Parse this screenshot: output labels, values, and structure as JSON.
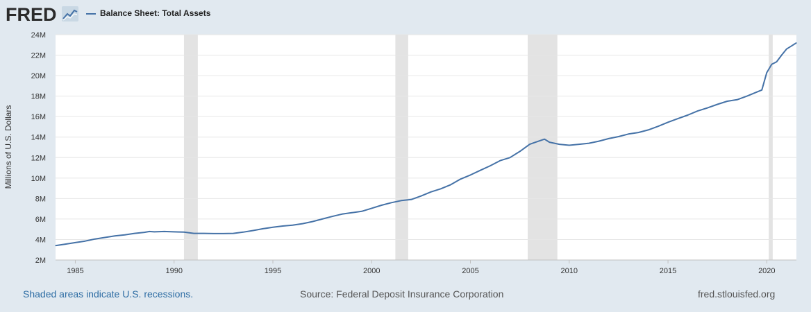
{
  "header": {
    "logo_text": "FRED",
    "legend_label": "Balance Sheet: Total Assets"
  },
  "colors": {
    "series": "#4572a7",
    "background": "#e1e9f0",
    "plot_bg": "#ffffff",
    "recession": "#e3e3e3",
    "grid": "#e6e6e6",
    "footer_link": "#2e6da4"
  },
  "footer": {
    "recession_note": "Shaded areas indicate U.S. recessions.",
    "source": "Source: Federal Deposit Insurance Corporation",
    "site": "fred.stlouisfed.org"
  },
  "chart_data": {
    "type": "line",
    "title": "Balance Sheet: Total Assets",
    "xlabel": "",
    "ylabel": "Millions of U.S. Dollars",
    "x_range": [
      1984.0,
      2021.5
    ],
    "ylim": [
      2000000,
      24000000
    ],
    "y_ticks": [
      2000000,
      4000000,
      6000000,
      8000000,
      10000000,
      12000000,
      14000000,
      16000000,
      18000000,
      20000000,
      22000000,
      24000000
    ],
    "y_tick_labels": [
      "2M",
      "4M",
      "6M",
      "8M",
      "10M",
      "12M",
      "14M",
      "16M",
      "18M",
      "20M",
      "22M",
      "24M"
    ],
    "x_ticks": [
      1985,
      1990,
      1995,
      2000,
      2005,
      2010,
      2015,
      2020
    ],
    "x_tick_labels": [
      "1985",
      "1990",
      "1995",
      "2000",
      "2005",
      "2010",
      "2015",
      "2020"
    ],
    "grid": true,
    "recessions": [
      [
        1990.5,
        1991.2
      ],
      [
        2001.2,
        2001.85
      ],
      [
        2007.9,
        2009.4
      ],
      [
        2020.1,
        2020.3
      ]
    ],
    "series": [
      {
        "name": "Balance Sheet: Total Assets",
        "x": [
          1984.0,
          1984.5,
          1985.0,
          1985.5,
          1986.0,
          1986.5,
          1987.0,
          1987.5,
          1988.0,
          1988.5,
          1988.75,
          1989.0,
          1989.5,
          1990.0,
          1990.5,
          1991.0,
          1991.5,
          1992.0,
          1992.5,
          1993.0,
          1993.5,
          1994.0,
          1994.5,
          1995.0,
          1995.5,
          1996.0,
          1996.5,
          1997.0,
          1997.5,
          1998.0,
          1998.5,
          1999.0,
          1999.5,
          2000.0,
          2000.5,
          2001.0,
          2001.5,
          2002.0,
          2002.5,
          2003.0,
          2003.5,
          2004.0,
          2004.5,
          2005.0,
          2005.5,
          2006.0,
          2006.5,
          2007.0,
          2007.5,
          2008.0,
          2008.3,
          2008.75,
          2009.0,
          2009.5,
          2010.0,
          2010.5,
          2011.0,
          2011.5,
          2012.0,
          2012.5,
          2013.0,
          2013.5,
          2014.0,
          2014.5,
          2015.0,
          2015.5,
          2016.0,
          2016.5,
          2017.0,
          2017.5,
          2018.0,
          2018.5,
          2019.0,
          2019.5,
          2019.75,
          2020.0,
          2020.25,
          2020.5,
          2020.75,
          2021.0,
          2021.25,
          2021.5
        ],
        "values": [
          3400000,
          3550000,
          3700000,
          3850000,
          4050000,
          4200000,
          4350000,
          4450000,
          4600000,
          4700000,
          4780000,
          4750000,
          4780000,
          4750000,
          4720000,
          4600000,
          4600000,
          4580000,
          4580000,
          4600000,
          4720000,
          4880000,
          5050000,
          5200000,
          5320000,
          5400000,
          5550000,
          5750000,
          6000000,
          6250000,
          6480000,
          6620000,
          6750000,
          7050000,
          7350000,
          7600000,
          7800000,
          7900000,
          8250000,
          8650000,
          8950000,
          9350000,
          9900000,
          10300000,
          10750000,
          11200000,
          11700000,
          12000000,
          12600000,
          13300000,
          13500000,
          13800000,
          13500000,
          13300000,
          13200000,
          13300000,
          13400000,
          13600000,
          13850000,
          14050000,
          14300000,
          14450000,
          14700000,
          15050000,
          15450000,
          15800000,
          16150000,
          16550000,
          16850000,
          17200000,
          17500000,
          17650000,
          18000000,
          18400000,
          18600000,
          20300000,
          21100000,
          21350000,
          22000000,
          22600000,
          22900000,
          23200000
        ]
      }
    ]
  }
}
